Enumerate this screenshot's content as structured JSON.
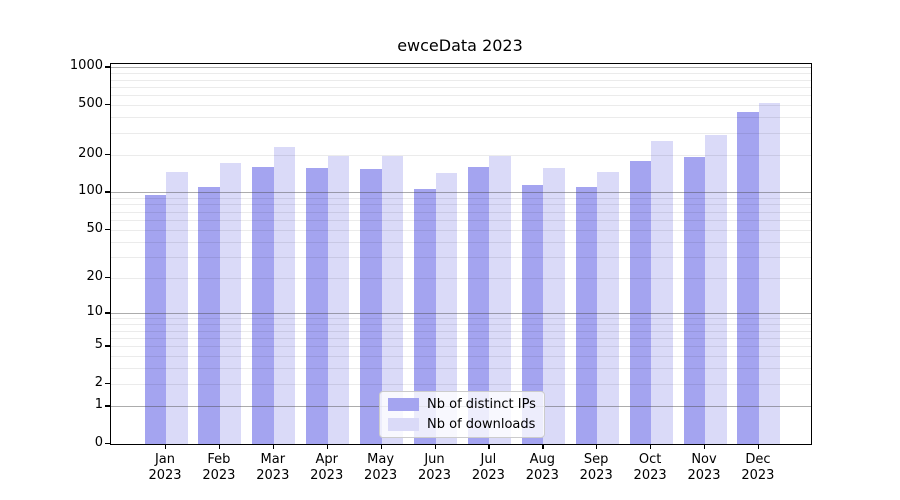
{
  "title": "ewceData 2023",
  "chart_data": {
    "type": "bar",
    "title": "ewceData 2023",
    "categories": [
      "Jan",
      "Feb",
      "Mar",
      "Apr",
      "May",
      "Jun",
      "Jul",
      "Aug",
      "Sep",
      "Oct",
      "Nov",
      "Dec"
    ],
    "category_year": "2023",
    "series": [
      {
        "name": "Nb of distinct IPs",
        "color": "#a4a4f0",
        "values": [
          95,
          111,
          160,
          158,
          154,
          107,
          161,
          115,
          110,
          180,
          191,
          442
        ]
      },
      {
        "name": "Nb of downloads",
        "color": "#dadaf8",
        "values": [
          145,
          172,
          233,
          197,
          195,
          143,
          197,
          157,
          147,
          258,
          290,
          520
        ]
      }
    ],
    "xlabel": "",
    "ylabel": "",
    "yscale": "log1p",
    "ylim": [
      0,
      1065
    ],
    "yticks": [
      0,
      1,
      2,
      5,
      10,
      20,
      50,
      100,
      200,
      500,
      1000
    ],
    "major_gridline_values": [
      1,
      10,
      100,
      1000
    ],
    "grid": true,
    "legend_position": "bottom-center-inside"
  },
  "colors": {
    "background": "#ffffff",
    "bar_ips": "#a4a4f0",
    "bar_downloads": "#dadaf8",
    "grid_major": "rgba(70,70,70,0.45)",
    "grid_minor": "rgba(0,0,0,0.08)",
    "spine": "#000000",
    "legend_border": "#cccccc"
  }
}
